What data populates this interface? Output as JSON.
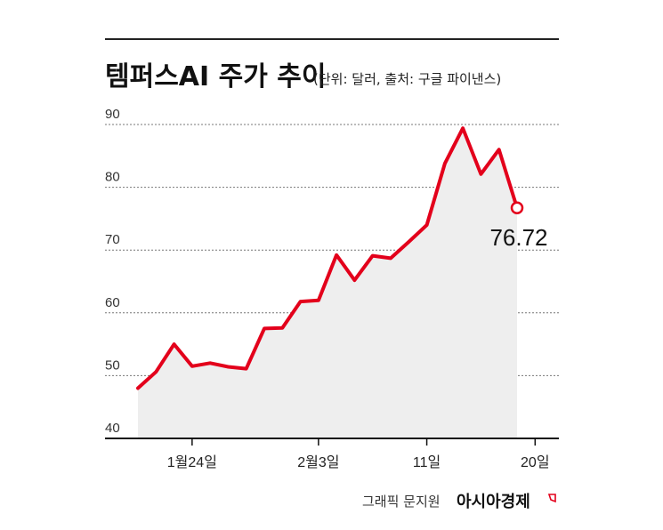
{
  "header": {
    "title": "템퍼스AI 주가 추이",
    "unit_note": "(단위: 달러, 출처: 구글 파이낸스)"
  },
  "credit": {
    "designer": "그래픽 문지원",
    "brand": "아시아경제"
  },
  "colors": {
    "line": "#e3001b",
    "area": "#eeeeee",
    "grid": "#777777",
    "axis": "#111111"
  },
  "chart_data": {
    "type": "line",
    "title": "템퍼스AI 주가 추이",
    "xlabel": "",
    "ylabel": "",
    "ylim": [
      40,
      90
    ],
    "yticks": [
      40,
      50,
      60,
      70,
      80,
      90
    ],
    "grid": true,
    "xtick_labels": [
      {
        "label": "1월24일",
        "index": 3
      },
      {
        "label": "2월3일",
        "index": 10
      },
      {
        "label": "11일",
        "index": 16
      },
      {
        "label": "20일",
        "index": 22
      }
    ],
    "series": [
      {
        "values": [
          48.0,
          50.6,
          55.0,
          51.5,
          52.0,
          51.4,
          51.1,
          57.5,
          57.6,
          61.8,
          62.0,
          69.2,
          65.2,
          69.1,
          68.7,
          71.3,
          74.0,
          83.8,
          89.4,
          82.1,
          86.0,
          76.72
        ]
      }
    ],
    "last_value_label": "76.72"
  }
}
